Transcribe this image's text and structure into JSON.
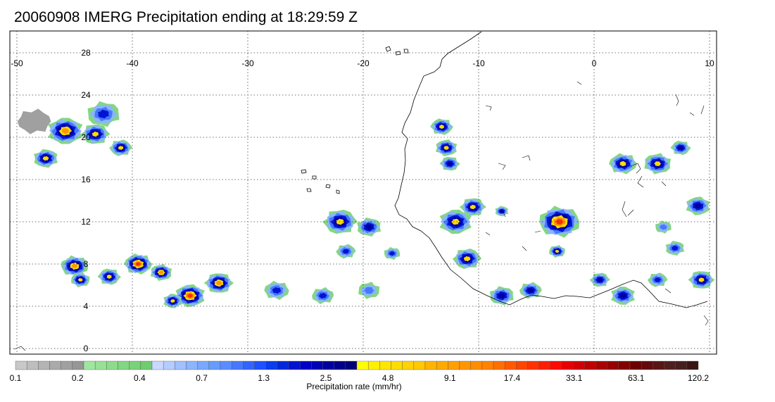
{
  "title": "20060908 IMERG Precipitation ending at 18:29:59 Z",
  "map": {
    "lon_range": [
      -50,
      10
    ],
    "lat_range": [
      0,
      30
    ],
    "lon_ticks": [
      -50,
      -40,
      -30,
      -20,
      -10,
      0,
      10
    ],
    "lat_ticks": [
      0,
      4,
      8,
      12,
      16,
      20,
      24,
      28
    ],
    "lon_tick_labels": [
      "-50",
      "-40",
      "-30",
      "-20",
      "-10",
      "0",
      "10"
    ],
    "lat_tick_labels": [
      "0",
      "4",
      "8",
      "12",
      "16",
      "20",
      "24",
      "28"
    ],
    "gridlines": true,
    "coastline_color": "#000000",
    "precip_cells": [
      {
        "lon": -45.8,
        "lat": 20.6,
        "size": 1.3,
        "intensity": 17
      },
      {
        "lon": -43.2,
        "lat": 20.3,
        "size": 1.0,
        "intensity": 9
      },
      {
        "lon": -47.5,
        "lat": 18.0,
        "size": 0.9,
        "intensity": 6
      },
      {
        "lon": -41.0,
        "lat": 19.0,
        "size": 0.8,
        "intensity": 8
      },
      {
        "lon": -42.5,
        "lat": 22.2,
        "size": 1.2,
        "intensity": 2
      },
      {
        "lon": -48.5,
        "lat": 21.5,
        "size": 1.2,
        "intensity": 0.15
      },
      {
        "lon": -45.0,
        "lat": 7.8,
        "size": 1.0,
        "intensity": 17
      },
      {
        "lon": -44.5,
        "lat": 6.5,
        "size": 0.7,
        "intensity": 9
      },
      {
        "lon": -39.5,
        "lat": 8.0,
        "size": 1.0,
        "intensity": 20
      },
      {
        "lon": -37.5,
        "lat": 7.2,
        "size": 0.8,
        "intensity": 10
      },
      {
        "lon": -42.0,
        "lat": 6.8,
        "size": 0.8,
        "intensity": 5
      },
      {
        "lon": -35.0,
        "lat": 5.0,
        "size": 1.1,
        "intensity": 25
      },
      {
        "lon": -32.5,
        "lat": 6.2,
        "size": 1.0,
        "intensity": 12
      },
      {
        "lon": -36.5,
        "lat": 4.5,
        "size": 0.7,
        "intensity": 9
      },
      {
        "lon": -22.0,
        "lat": 12.0,
        "size": 1.2,
        "intensity": 6
      },
      {
        "lon": -19.5,
        "lat": 11.5,
        "size": 0.9,
        "intensity": 4
      },
      {
        "lon": -21.5,
        "lat": 9.2,
        "size": 0.7,
        "intensity": 2
      },
      {
        "lon": -17.5,
        "lat": 9.0,
        "size": 0.6,
        "intensity": 2
      },
      {
        "lon": -23.5,
        "lat": 5.0,
        "size": 0.8,
        "intensity": 2
      },
      {
        "lon": -27.5,
        "lat": 5.5,
        "size": 0.9,
        "intensity": 2
      },
      {
        "lon": -19.5,
        "lat": 5.5,
        "size": 0.8,
        "intensity": 1
      },
      {
        "lon": -13.2,
        "lat": 21.0,
        "size": 0.8,
        "intensity": 5
      },
      {
        "lon": -12.8,
        "lat": 19.0,
        "size": 0.8,
        "intensity": 5
      },
      {
        "lon": -12.5,
        "lat": 17.5,
        "size": 0.7,
        "intensity": 4
      },
      {
        "lon": -12.0,
        "lat": 12.0,
        "size": 1.2,
        "intensity": 9
      },
      {
        "lon": -10.5,
        "lat": 13.4,
        "size": 0.9,
        "intensity": 5
      },
      {
        "lon": -8.0,
        "lat": 13.0,
        "size": 0.5,
        "intensity": 3
      },
      {
        "lon": -11.0,
        "lat": 8.5,
        "size": 1.0,
        "intensity": 7
      },
      {
        "lon": -8.0,
        "lat": 5.0,
        "size": 0.9,
        "intensity": 4
      },
      {
        "lon": -5.5,
        "lat": 5.5,
        "size": 0.8,
        "intensity": 3
      },
      {
        "lon": -3.0,
        "lat": 12.0,
        "size": 1.5,
        "intensity": 30
      },
      {
        "lon": -3.2,
        "lat": 9.2,
        "size": 0.6,
        "intensity": 5
      },
      {
        "lon": 2.5,
        "lat": 17.5,
        "size": 1.0,
        "intensity": 9
      },
      {
        "lon": 5.5,
        "lat": 17.5,
        "size": 1.0,
        "intensity": 9
      },
      {
        "lon": 7.5,
        "lat": 19.0,
        "size": 0.7,
        "intensity": 3
      },
      {
        "lon": 9.0,
        "lat": 13.5,
        "size": 0.9,
        "intensity": 4
      },
      {
        "lon": 9.3,
        "lat": 6.5,
        "size": 0.9,
        "intensity": 6
      },
      {
        "lon": 2.5,
        "lat": 5.0,
        "size": 0.9,
        "intensity": 4
      },
      {
        "lon": 0.5,
        "lat": 6.5,
        "size": 0.7,
        "intensity": 3
      },
      {
        "lon": 7.0,
        "lat": 9.5,
        "size": 0.7,
        "intensity": 2
      },
      {
        "lon": 5.5,
        "lat": 6.5,
        "size": 0.7,
        "intensity": 2
      },
      {
        "lon": 6.0,
        "lat": 11.5,
        "size": 0.6,
        "intensity": 1
      }
    ]
  },
  "colorbar": {
    "label": "Precipitation rate (mm/hr)",
    "tick_labels": [
      "0.1",
      "0.2",
      "0.4",
      "0.7",
      "1.3",
      "2.5",
      "4.8",
      "9.1",
      "17.4",
      "33.1",
      "63.1",
      "120.2"
    ],
    "colors": [
      "#c8c8c8",
      "#bebebe",
      "#b4b4b4",
      "#aaaaaa",
      "#a0a0a0",
      "#969696",
      "#a0e6a0",
      "#96e196",
      "#8cdc8c",
      "#82d782",
      "#78d278",
      "#6ecd6e",
      "#c8d8ff",
      "#b4ccff",
      "#a0c0ff",
      "#8cb4ff",
      "#78a8ff",
      "#649cff",
      "#5a8cff",
      "#4678ff",
      "#3264ff",
      "#1e50ff",
      "#0a3cf0",
      "#0028dc",
      "#0014d2",
      "#0000c8",
      "#0000b4",
      "#0000a0",
      "#00008c",
      "#000078",
      "#ffff00",
      "#fff000",
      "#ffe600",
      "#ffdc00",
      "#ffd200",
      "#ffc800",
      "#ffb400",
      "#ffaa00",
      "#ffa000",
      "#ff9600",
      "#ff8c00",
      "#ff8200",
      "#ff6e00",
      "#ff5a00",
      "#ff4600",
      "#ff3200",
      "#ff1e00",
      "#ff0a00",
      "#e60000",
      "#d20000",
      "#be0000",
      "#aa0000",
      "#960000",
      "#820000",
      "#6e0000",
      "#640a0a",
      "#5a1414",
      "#501e1e",
      "#461e1e",
      "#3c1414"
    ]
  }
}
